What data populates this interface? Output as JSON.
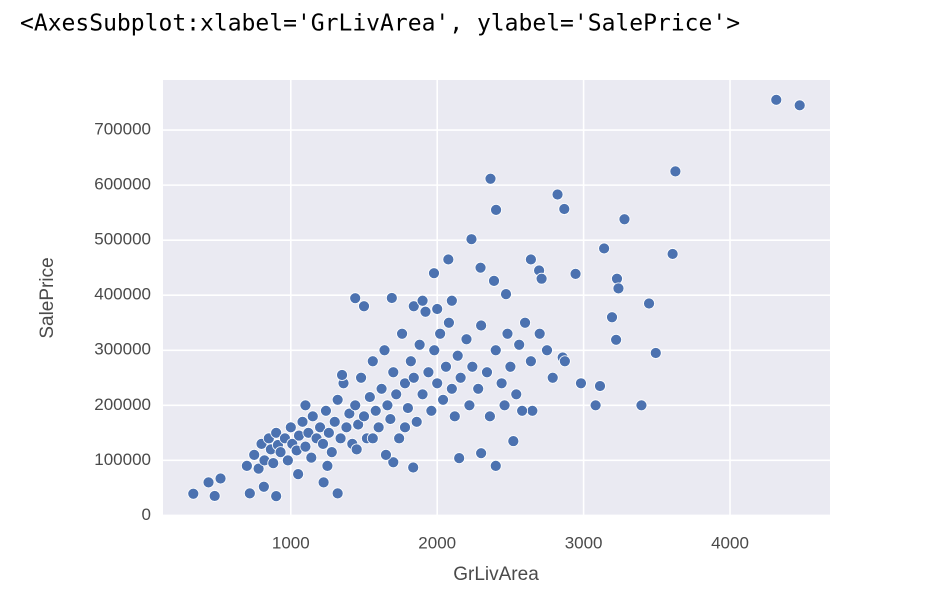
{
  "cell_output": "<AxesSubplot:xlabel='GrLivArea', ylabel='SalePrice'>",
  "chart_data": {
    "type": "scatter",
    "xlabel": "GrLivArea",
    "ylabel": "SalePrice",
    "color": "#4c72b0",
    "grid": true,
    "xlim": [
      127,
      4683
    ],
    "ylim": [
      -1100,
      791000
    ],
    "xticks": [
      1000,
      2000,
      3000,
      4000
    ],
    "yticks": [
      0,
      100000,
      200000,
      300000,
      400000,
      500000,
      600000,
      700000
    ],
    "x": [
      4316,
      4476,
      3627,
      2364,
      2822,
      2868,
      2402,
      3279,
      2234,
      3140,
      3608,
      2945,
      3228,
      3238,
      2696,
      2713,
      2640,
      3447,
      1440,
      1978,
      2076,
      2296,
      2388,
      2470,
      3493,
      3222,
      3194,
      2982,
      3082,
      3112,
      3395,
      2857,
      2872,
      2789,
      2400,
      2520,
      2650,
      2580,
      2460,
      334,
      480,
      438,
      520,
      720,
      900,
      1320,
      1224,
      816,
      1700,
      1836,
      2150,
      2300,
      700,
      750,
      780,
      800,
      820,
      850,
      864,
      880,
      900,
      912,
      930,
      960,
      980,
      1000,
      1010,
      1040,
      1056,
      1080,
      1100,
      1120,
      1140,
      1150,
      1176,
      1200,
      1220,
      1240,
      1260,
      1280,
      1300,
      1320,
      1340,
      1360,
      1380,
      1400,
      1420,
      1440,
      1460,
      1480,
      1500,
      1520,
      1540,
      1560,
      1580,
      1600,
      1620,
      1640,
      1660,
      1680,
      1700,
      1720,
      1740,
      1760,
      1780,
      1800,
      1820,
      1840,
      1860,
      1880,
      1900,
      1920,
      1940,
      1960,
      1980,
      2000,
      2020,
      2040,
      2060,
      2080,
      2100,
      2120,
      2140,
      2160,
      2200,
      2220,
      2240,
      2280,
      2300,
      2340,
      2360,
      2400,
      2440,
      2480,
      2500,
      2540,
      2560,
      2600,
      2640,
      2700,
      2750,
      1500,
      1690,
      1840,
      1650,
      1450,
      1250,
      1050,
      1100,
      1350,
      1900,
      2000,
      2100,
      1560,
      1780
    ],
    "values": [
      755000,
      745000,
      625000,
      611657,
      582933,
      556581,
      555000,
      538000,
      501837,
      485000,
      475000,
      438780,
      430000,
      412500,
      445000,
      430000,
      465000,
      385000,
      394617,
      440000,
      465000,
      450000,
      426000,
      402000,
      295000,
      319000,
      360000,
      240000,
      200000,
      235000,
      200000,
      287000,
      280000,
      250000,
      90000,
      135000,
      190000,
      190000,
      200000,
      39300,
      35311,
      60000,
      67000,
      40000,
      35000,
      40000,
      60000,
      52000,
      96500,
      87000,
      104000,
      113000,
      90000,
      110000,
      85000,
      130000,
      100000,
      140000,
      120000,
      95000,
      150000,
      128000,
      115000,
      140000,
      100000,
      160000,
      130000,
      118000,
      145000,
      170000,
      125000,
      150000,
      105000,
      180000,
      140000,
      160000,
      130000,
      190000,
      150000,
      115000,
      170000,
      210000,
      140000,
      240000,
      160000,
      185000,
      130000,
      200000,
      165000,
      250000,
      180000,
      140000,
      215000,
      280000,
      190000,
      160000,
      230000,
      300000,
      200000,
      175000,
      260000,
      220000,
      140000,
      330000,
      240000,
      195000,
      280000,
      250000,
      170000,
      310000,
      220000,
      370000,
      260000,
      190000,
      300000,
      240000,
      330000,
      210000,
      270000,
      350000,
      230000,
      180000,
      290000,
      250000,
      320000,
      200000,
      270000,
      230000,
      345000,
      260000,
      180000,
      300000,
      240000,
      330000,
      270000,
      220000,
      310000,
      350000,
      280000,
      330000,
      300000,
      380000,
      395000,
      380000,
      110000,
      120000,
      90000,
      75000,
      200000,
      255000,
      390000,
      375000,
      390000,
      140000,
      160000
    ]
  }
}
